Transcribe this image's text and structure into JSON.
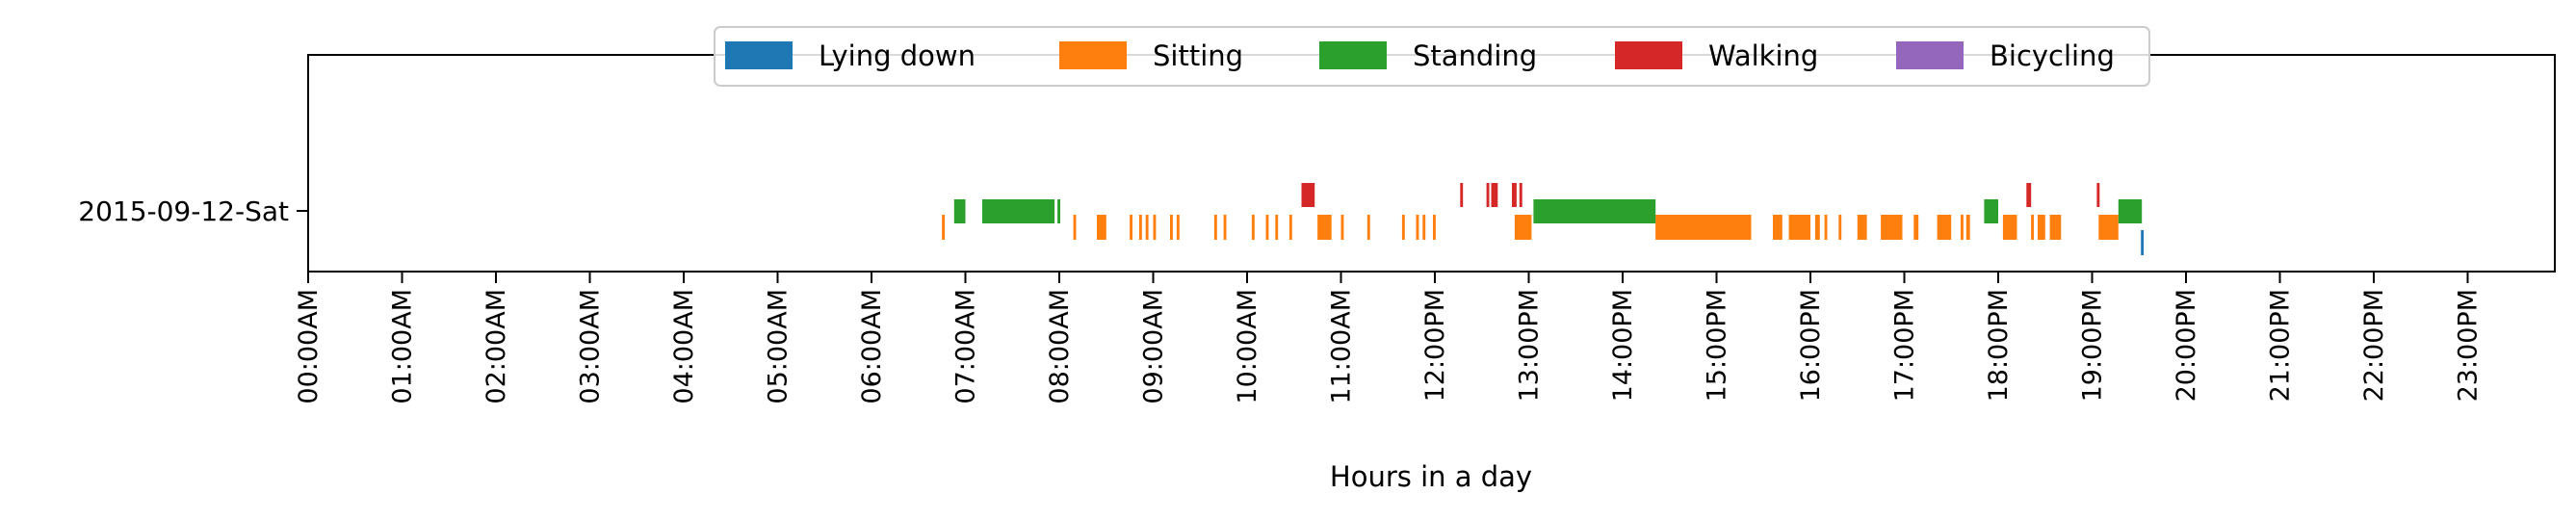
{
  "chart_data": {
    "type": "timeline",
    "xlabel": "Hours in a day",
    "xlim": [
      0,
      24
    ],
    "rows": [
      "2015-09-12-Sat"
    ],
    "x_tick_labels": [
      "00:00AM",
      "01:00AM",
      "02:00AM",
      "03:00AM",
      "04:00AM",
      "05:00AM",
      "06:00AM",
      "07:00AM",
      "08:00AM",
      "09:00AM",
      "10:00AM",
      "11:00AM",
      "12:00PM",
      "13:00PM",
      "14:00PM",
      "15:00PM",
      "16:00PM",
      "17:00PM",
      "18:00PM",
      "19:00PM",
      "20:00PM",
      "21:00PM",
      "22:00PM",
      "23:00PM"
    ],
    "legend_position": "top-center",
    "series": [
      {
        "name": "Lying down",
        "color": "#1f77b4",
        "intervals": [
          [
            19.52,
            19.55
          ]
        ]
      },
      {
        "name": "Sitting",
        "color": "#ff7f0e",
        "intervals": [
          [
            6.75,
            6.78
          ],
          [
            8.15,
            8.18
          ],
          [
            8.4,
            8.5
          ],
          [
            8.75,
            8.78
          ],
          [
            8.85,
            8.88
          ],
          [
            8.92,
            8.95
          ],
          [
            9.0,
            9.03
          ],
          [
            9.18,
            9.21
          ],
          [
            9.25,
            9.28
          ],
          [
            9.65,
            9.68
          ],
          [
            9.75,
            9.78
          ],
          [
            10.05,
            10.08
          ],
          [
            10.2,
            10.23
          ],
          [
            10.3,
            10.33
          ],
          [
            10.45,
            10.48
          ],
          [
            10.75,
            10.9
          ],
          [
            11.0,
            11.03
          ],
          [
            11.28,
            11.31
          ],
          [
            11.65,
            11.68
          ],
          [
            11.8,
            11.83
          ],
          [
            11.87,
            11.9
          ],
          [
            11.98,
            12.01
          ],
          [
            12.85,
            13.03
          ],
          [
            14.35,
            15.37
          ],
          [
            15.6,
            15.7
          ],
          [
            15.77,
            16.0
          ],
          [
            16.05,
            16.1
          ],
          [
            16.15,
            16.18
          ],
          [
            16.3,
            16.33
          ],
          [
            16.5,
            16.6
          ],
          [
            16.75,
            16.98
          ],
          [
            17.1,
            17.15
          ],
          [
            17.35,
            17.5
          ],
          [
            17.6,
            17.63
          ],
          [
            17.66,
            17.7
          ],
          [
            18.05,
            18.2
          ],
          [
            18.35,
            18.38
          ],
          [
            18.42,
            18.5
          ],
          [
            18.55,
            18.67
          ],
          [
            19.07,
            19.28
          ]
        ]
      },
      {
        "name": "Standing",
        "color": "#2ca02c",
        "intervals": [
          [
            6.88,
            7.0
          ],
          [
            7.18,
            7.95
          ],
          [
            7.98,
            8.01
          ],
          [
            13.05,
            14.35
          ],
          [
            17.85,
            18.0
          ],
          [
            19.28,
            19.53
          ]
        ]
      },
      {
        "name": "Walking",
        "color": "#d62728",
        "intervals": [
          [
            10.58,
            10.72
          ],
          [
            12.27,
            12.3
          ],
          [
            12.55,
            12.58
          ],
          [
            12.6,
            12.67
          ],
          [
            12.82,
            12.87
          ],
          [
            12.9,
            12.93
          ],
          [
            18.3,
            18.35
          ],
          [
            19.05,
            19.08
          ]
        ]
      },
      {
        "name": "Bicycling",
        "color": "#9467bd",
        "intervals": []
      }
    ]
  }
}
